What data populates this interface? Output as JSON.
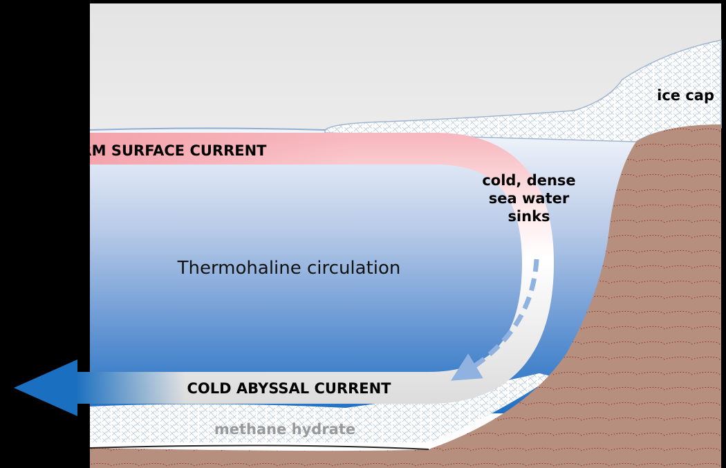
{
  "labels": {
    "ice_cap": "ice cap",
    "warm_current": "WARM SURFACE CURRENT",
    "sinking": [
      "cold, dense",
      "sea water",
      "sinks"
    ],
    "title": "Thermohaline circulation",
    "cold_current": "COLD ABYSSAL CURRENT",
    "methane": "methane hydrate"
  }
}
